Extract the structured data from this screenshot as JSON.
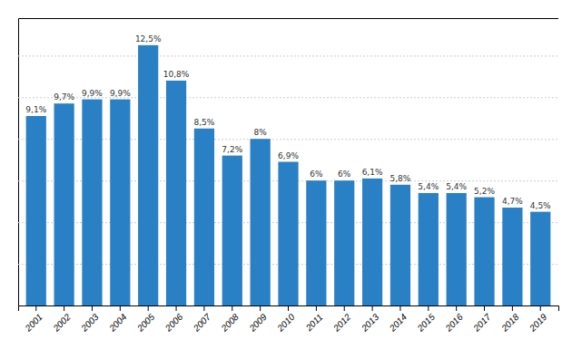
{
  "chart_data": {
    "type": "bar",
    "categories": [
      "2001",
      "2002",
      "2003",
      "2004",
      "2005",
      "2006",
      "2007",
      "2008",
      "2009",
      "2010",
      "2011",
      "2012",
      "2013",
      "2014",
      "2015",
      "2016",
      "2017",
      "2018",
      "2019"
    ],
    "values": [
      9.1,
      9.7,
      9.9,
      9.9,
      12.5,
      10.8,
      8.5,
      7.2,
      8.0,
      6.9,
      6.0,
      6.0,
      6.1,
      5.8,
      5.4,
      5.4,
      5.2,
      4.7,
      4.5
    ],
    "value_labels": [
      "9,1%",
      "9,7%",
      "9,9%",
      "9,9%",
      "12,5%",
      "10,8%",
      "8,5%",
      "7,2%",
      "8%",
      "6,9%",
      "6%",
      "6%",
      "6,1%",
      "5,8%",
      "5,4%",
      "5,4%",
      "5,2%",
      "4,7%",
      "4,5%"
    ],
    "color": "#2980c4",
    "ylim": [
      0,
      13.8
    ],
    "yticks": [
      2,
      4,
      6,
      8,
      10,
      12
    ],
    "grid": true,
    "data_labels": true,
    "tick_labels": "x"
  }
}
